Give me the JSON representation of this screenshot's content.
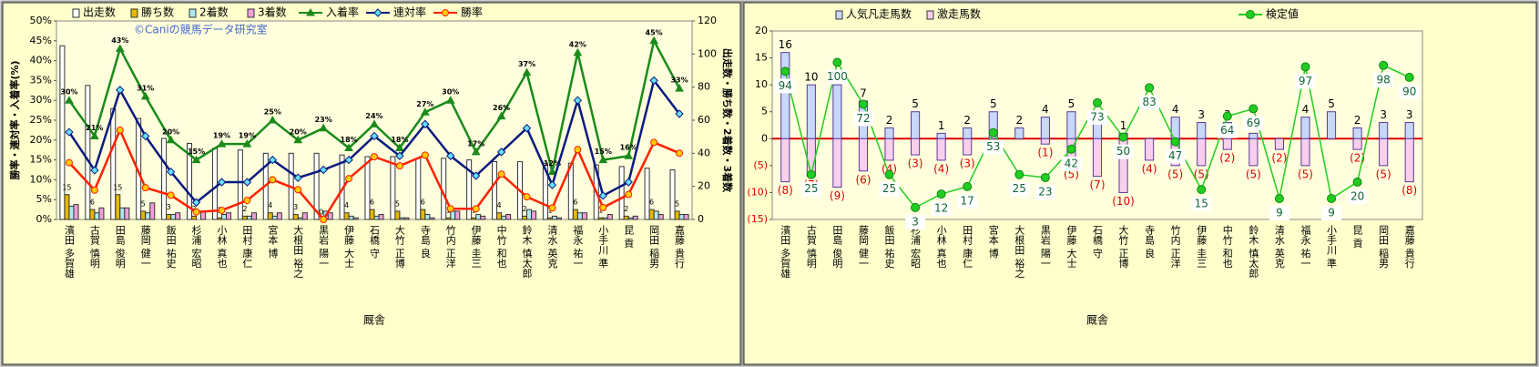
{
  "chart_data": [
    {
      "type": "combo",
      "watermark": "©Caniの競馬データ研究室",
      "xlabel": "厩舎",
      "ylabel": "勝率・連対率・入着率(%)",
      "y2label": "出走数・勝ち数・2着数・3着数",
      "categories": [
        "濱田 多賀雄",
        "古賀 慎明",
        "田島 俊明",
        "藤岡 健一",
        "飯田 祐史",
        "杉浦 宏昭",
        "小林 真也",
        "田村 康仁",
        "宮本 博",
        "大根田 裕之",
        "黒岩 陽一",
        "伊藤 大士",
        "石橋 守",
        "大竹 正博",
        "寺島 良",
        "竹内 正洋",
        "伊藤 圭三",
        "中竹 和也",
        "鈴木 慎太郎",
        "清水 英克",
        "福永 祐一",
        "小手川 準",
        "昆 貢",
        "岡田 稲男",
        "嘉藤 貴行"
      ],
      "ylim": [
        0,
        50
      ],
      "yticks": [
        {
          "value": 0,
          "label": "0%"
        },
        {
          "value": 5,
          "label": "5%"
        },
        {
          "value": 10,
          "label": "10%"
        },
        {
          "value": 15,
          "label": "15%"
        },
        {
          "value": 20,
          "label": "20%"
        },
        {
          "value": 25,
          "label": "25%"
        },
        {
          "value": 30,
          "label": "30%"
        },
        {
          "value": 35,
          "label": "35%"
        },
        {
          "value": 40,
          "label": "40%"
        },
        {
          "value": 45,
          "label": "45%"
        },
        {
          "value": 50,
          "label": "50%"
        }
      ],
      "y2lim": [
        0,
        120
      ],
      "y2ticks": [
        0,
        20,
        40,
        60,
        80,
        100,
        120
      ],
      "bar_mode": "group",
      "series": [
        {
          "name": "出走数",
          "type": "bar",
          "axis": "y2",
          "color": "#ffffff",
          "values": [
            105,
            81,
            67,
            61,
            49,
            46,
            43,
            42,
            40,
            40,
            40,
            39,
            38,
            38,
            37,
            37,
            36,
            35,
            35,
            34,
            34,
            33,
            32,
            31,
            30
          ]
        },
        {
          "name": "勝ち数",
          "type": "bar",
          "axis": "y2",
          "color": "#e6b800",
          "data_labels": true,
          "values": [
            15,
            6,
            15,
            5,
            3,
            2,
            1,
            2,
            4,
            3,
            0,
            4,
            6,
            5,
            6,
            1,
            1,
            4,
            2,
            1,
            6,
            1,
            2,
            6,
            5
          ]
        },
        {
          "name": "2着数",
          "type": "bar",
          "axis": "y2",
          "color": "#aee8f0",
          "values": [
            8,
            4,
            7,
            4,
            3,
            0,
            3,
            2,
            2,
            1,
            5,
            2,
            2,
            1,
            3,
            5,
            3,
            2,
            6,
            2,
            4,
            1,
            1,
            5,
            3
          ]
        },
        {
          "name": "3着数",
          "type": "bar",
          "axis": "y2",
          "color": "#f0a0d8",
          "values": [
            9,
            7,
            7,
            10,
            4,
            5,
            4,
            4,
            4,
            4,
            4,
            1,
            3,
            1,
            1,
            5,
            2,
            3,
            5,
            1,
            4,
            3,
            2,
            3,
            3
          ]
        },
        {
          "name": "入着率",
          "type": "line",
          "axis": "y",
          "color": "#1a8a1a",
          "marker": "triangle",
          "values": [
            30,
            21,
            43,
            31,
            20,
            15,
            19,
            19,
            25,
            20,
            23,
            18,
            24,
            18,
            27,
            30,
            17,
            26,
            37,
            12,
            42,
            15,
            16,
            45,
            33
          ],
          "value_labels": [
            "30%",
            "21%",
            "43%",
            "31%",
            "20%",
            "15%",
            "19%",
            "19%",
            "25%",
            "20%",
            "23%",
            "18%",
            "24%",
            "18%",
            "27%",
            "30%",
            "17%",
            "26%",
            "37%",
            "12%",
            "42%",
            "15%",
            "16%",
            "45%",
            "33%"
          ]
        },
        {
          "name": "連対率",
          "type": "line",
          "axis": "y",
          "color": "#0a1a80",
          "marker": "diamond",
          "values": [
            22,
            12.4,
            32.6,
            21,
            12,
            4.3,
            9.4,
            9.4,
            15,
            10.5,
            12.5,
            15,
            21,
            16,
            24,
            16,
            11,
            17,
            23,
            8.7,
            30,
            6,
            9.4,
            35,
            26.6
          ]
        },
        {
          "name": "勝率",
          "type": "line",
          "axis": "y",
          "color": "#ff2000",
          "marker": "circle",
          "values": [
            14.3,
            7.4,
            22.5,
            8,
            6.1,
            1.9,
            2.3,
            4.8,
            10,
            7.5,
            0,
            10.3,
            15.8,
            13.5,
            16.2,
            2.7,
            2.7,
            11.4,
            5.7,
            2.9,
            17.6,
            3,
            6.3,
            19.4,
            16.7
          ]
        }
      ]
    },
    {
      "type": "combo",
      "xlabel": "厩舎",
      "categories": [
        "濱田 多賀雄",
        "古賀 慎明",
        "田島 俊明",
        "藤岡 健一",
        "飯田 祐史",
        "杉浦 宏昭",
        "小林 真也",
        "田村 康仁",
        "宮本 博",
        "大根田 裕之",
        "黒岩 陽一",
        "伊藤 大士",
        "石橋 守",
        "大竹 正博",
        "寺島 良",
        "竹内 正洋",
        "伊藤 圭三",
        "中竹 和也",
        "鈴木 慎太郎",
        "清水 英克",
        "福永 祐一",
        "小手川 準",
        "昆 貢",
        "岡田 稲男",
        "嘉藤 貴行"
      ],
      "ylim": [
        -15,
        20
      ],
      "yticks": [
        {
          "value": -15,
          "label": "(15)"
        },
        {
          "value": -10,
          "label": "(10)"
        },
        {
          "value": -5,
          "label": "(5)"
        },
        0,
        5,
        10,
        15,
        20
      ],
      "y2lim": [
        -5,
        121
      ],
      "bar_mode": "overlap",
      "zero_line": "#e00000",
      "series": [
        {
          "name": "人気凡走馬数",
          "type": "bar",
          "axis": "y",
          "color": "#c8d8f8",
          "data_labels": true,
          "values": [
            16,
            10,
            10,
            7,
            2,
            5,
            1,
            2,
            5,
            2,
            4,
            5,
            3,
            1,
            null,
            4,
            3,
            3,
            1,
            null,
            4,
            5,
            2,
            3,
            3
          ]
        },
        {
          "name": "激走馬数",
          "type": "bar",
          "axis": "y",
          "color": "#f8d0ec",
          "label_color": "#e00000",
          "values": [
            -8,
            -7,
            -9,
            -6,
            -4,
            -3,
            -4,
            -3,
            null,
            null,
            -1,
            -5,
            -7,
            -10,
            -4,
            -5,
            -5,
            -2,
            -5,
            -2,
            -5,
            null,
            -2,
            -5,
            -8
          ],
          "value_labels": [
            "(8)",
            "(7)",
            "(9)",
            "(6)",
            "(4)",
            "(3)",
            "(4)",
            "(3)",
            null,
            null,
            "(1)",
            "(5)",
            "(7)",
            "(10)",
            "(4)",
            "(5)",
            "(5)",
            "(2)",
            "(5)",
            "(2)",
            "(5)",
            null,
            "(2)",
            "(5)",
            "(8)"
          ]
        },
        {
          "name": "検定値",
          "type": "line",
          "axis": "y2",
          "color": "#22cc22",
          "marker": "circle",
          "label_box": true,
          "values": [
            94,
            25,
            100,
            72,
            25,
            3,
            12,
            17,
            53,
            25,
            23,
            42,
            73,
            50,
            83,
            47,
            15,
            64,
            69,
            9,
            97,
            9,
            20,
            98,
            90
          ]
        }
      ]
    }
  ]
}
